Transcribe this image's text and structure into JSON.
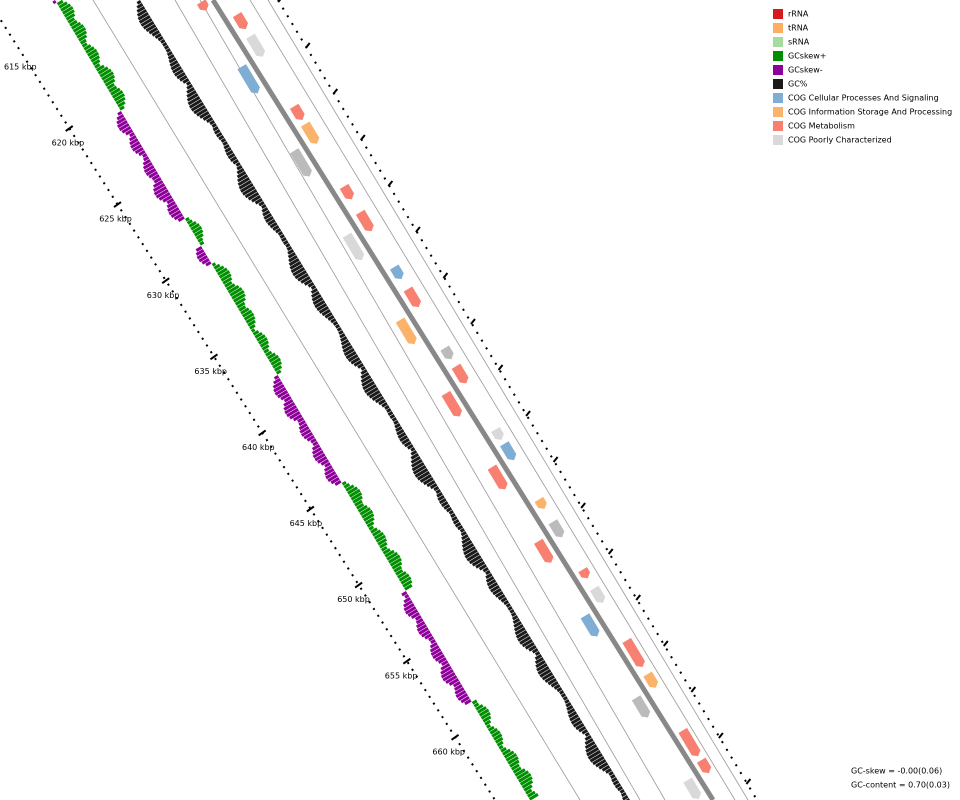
{
  "legend": [
    {
      "label": "rRNA",
      "color": "#d7191c"
    },
    {
      "label": "tRNA",
      "color": "#fdae61"
    },
    {
      "label": "sRNA",
      "color": "#a6dba0"
    },
    {
      "label": "GCskew+",
      "color": "#008f00"
    },
    {
      "label": "GCskew-",
      "color": "#8e0099"
    },
    {
      "label": "GC%",
      "color": "#1a1a1a"
    },
    {
      "label": "COG Cellular Processes And Signaling",
      "color": "#7fadd3"
    },
    {
      "label": "COG Information Storage And Processing",
      "color": "#fbb36b"
    },
    {
      "label": "COG Metabolism",
      "color": "#f88070"
    },
    {
      "label": "COG Poorly Characterized",
      "color": "#d9d9d9"
    }
  ],
  "scale_labels": [
    "615 kbp",
    "620 kbp",
    "625 kbp",
    "630 kbp",
    "635 kbp",
    "640 kbp",
    "645 kbp",
    "650 kbp",
    "655 kbp",
    "660 kbp"
  ],
  "stats": [
    "GC-skew = -0.00(0.06)",
    "GC-content = 0.70(0.03)"
  ]
}
